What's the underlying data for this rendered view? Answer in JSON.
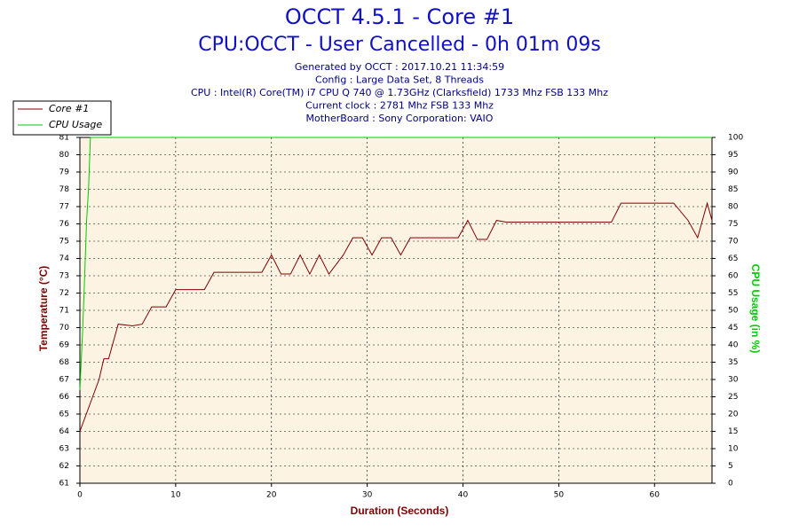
{
  "chart_data": {
    "type": "line",
    "title": "OCCT 4.5.1 - Core #1",
    "subtitle": "CPU:OCCT - User Cancelled - 0h 01m 09s",
    "info": [
      "Generated by OCCT : 2017.10.21 11:34:59",
      "Config : Large Data Set, 8 Threads",
      "CPU : Intel(R) Core(TM) i7 CPU Q 740 @ 1.73GHz (Clarksfield) 1733 Mhz FSB 133 Mhz",
      "Current clock : 2781 Mhz FSB 133 Mhz",
      "MotherBoard : Sony Corporation: VAIO"
    ],
    "x_label": "Duration (Seconds)",
    "y_label": "Temperature (°C)",
    "y2_label": "CPU Usage (in %)",
    "xlim": [
      0,
      66
    ],
    "xticks": [
      0,
      10,
      20,
      30,
      40,
      50,
      60
    ],
    "ylim": [
      61,
      81
    ],
    "yticks": [
      61,
      62,
      63,
      64,
      65,
      66,
      67,
      68,
      69,
      70,
      71,
      72,
      73,
      74,
      75,
      76,
      77,
      78,
      79,
      80,
      81
    ],
    "y2lim": [
      0,
      100
    ],
    "y2ticks": [
      0,
      5,
      10,
      15,
      20,
      25,
      30,
      35,
      40,
      45,
      50,
      55,
      60,
      65,
      70,
      75,
      80,
      85,
      90,
      95,
      100
    ],
    "grid": true,
    "legend": "top-left",
    "series": [
      {
        "name": "Core #1",
        "color": "#800000",
        "x": [
          0,
          1,
          2,
          2.5,
          3,
          4,
          5.5,
          6.5,
          7.5,
          9,
          10,
          13,
          14,
          19,
          20,
          21,
          22,
          23,
          24,
          25,
          26,
          27.5,
          28.5,
          29.5,
          30.5,
          31.5,
          32.5,
          33.5,
          34.5,
          39.5,
          40.5,
          41.5,
          42.5,
          43.5,
          44.5,
          55.5,
          56.5,
          62,
          63.5,
          64.5,
          65.5,
          66
        ],
        "values": [
          64,
          65.5,
          67,
          68.2,
          68.2,
          70.2,
          70.1,
          70.2,
          71.2,
          71.2,
          72.2,
          72.2,
          73.2,
          73.2,
          74.2,
          73.1,
          73.1,
          74.2,
          73.1,
          74.2,
          73.1,
          74.2,
          75.2,
          75.2,
          74.2,
          75.2,
          75.2,
          74.2,
          75.2,
          75.2,
          76.2,
          75.1,
          75.1,
          76.2,
          76.1,
          76.1,
          77.2,
          77.2,
          76.2,
          75.2,
          77.2,
          76.2
        ]
      },
      {
        "name": "CPU Usage",
        "color": "#00cc00",
        "axis": "y2",
        "x": [
          0,
          0.3,
          0.5,
          0.7,
          0.9,
          1.1,
          66
        ],
        "values": [
          27,
          45,
          60,
          76,
          85,
          100,
          100
        ]
      }
    ]
  }
}
